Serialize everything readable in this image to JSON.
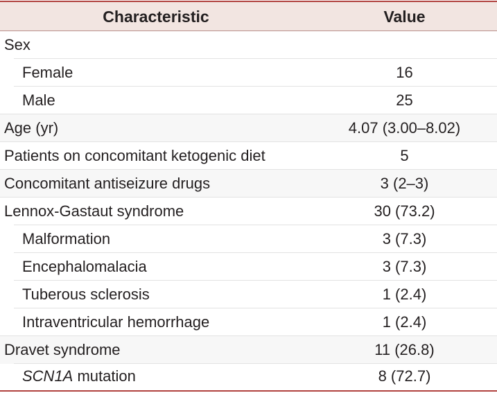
{
  "header": {
    "characteristic": "Characteristic",
    "value": "Value"
  },
  "rows": [
    {
      "label": "Sex",
      "value": ""
    },
    {
      "label": "Female",
      "value": "16"
    },
    {
      "label": "Male",
      "value": "25"
    },
    {
      "label": "Age (yr)",
      "value": "4.07 (3.00–8.02)"
    },
    {
      "label": "Patients on concomitant ketogenic diet",
      "value": "5"
    },
    {
      "label": "Concomitant antiseizure drugs",
      "value": "3 (2–3)"
    },
    {
      "label": "Lennox-Gastaut syndrome",
      "value": "30 (73.2)"
    },
    {
      "label": "Malformation",
      "value": "3 (7.3)"
    },
    {
      "label": "Encephalomalacia",
      "value": "3 (7.3)"
    },
    {
      "label": "Tuberous sclerosis",
      "value": "1 (2.4)"
    },
    {
      "label": "Intraventricular hemorrhage",
      "value": "1 (2.4)"
    },
    {
      "label": "Dravet syndrome",
      "value": "11 (26.8)"
    },
    {
      "label_italic": "SCN1A",
      "label_rest": " mutation",
      "value": "8 (72.7)"
    }
  ]
}
